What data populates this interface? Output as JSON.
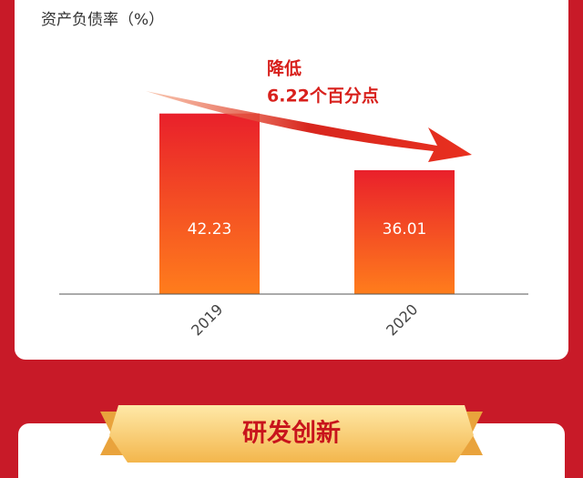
{
  "chart_data": {
    "type": "bar",
    "title": "资产负债率（%）",
    "categories": [
      "2019",
      "2020"
    ],
    "values": [
      42.23,
      36.01
    ],
    "ylim": [
      22.4,
      45
    ],
    "annotation": [
      "降低",
      "6.22个百分点"
    ],
    "section_title": "研发创新"
  }
}
